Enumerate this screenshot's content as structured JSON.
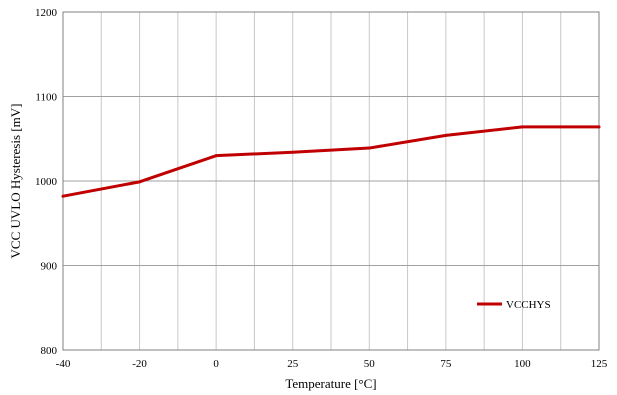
{
  "chart_data": {
    "type": "line",
    "title": "",
    "xlabel": "Temperature [°C]",
    "ylabel": "VCC UVLO  Hysteresis  [mV]",
    "x_tick_labels": [
      "-40",
      "-20",
      "0",
      "25",
      "50",
      "75",
      "100",
      "125"
    ],
    "y_tick_labels": [
      "800",
      "900",
      "1000",
      "1100",
      "1200"
    ],
    "ylim": [
      800,
      1200
    ],
    "grid": true,
    "legend_position": "bottom-right",
    "series": [
      {
        "name": "VCCHYS",
        "color": "#c00000",
        "x": [
          -40,
          -20,
          0,
          25,
          50,
          75,
          100,
          125
        ],
        "y": [
          982,
          999,
          1030,
          1034,
          1039,
          1054,
          1064,
          1064
        ]
      }
    ]
  }
}
